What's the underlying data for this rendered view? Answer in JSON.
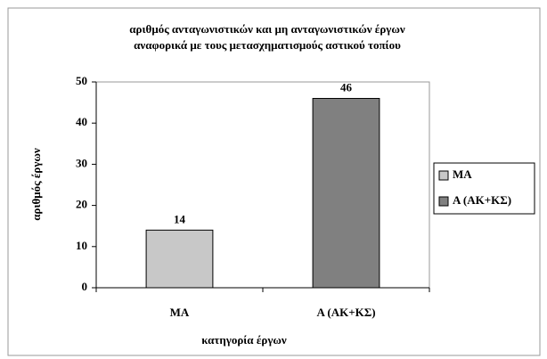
{
  "chart_data": {
    "type": "bar",
    "title": [
      "αριθμός ανταγωνιστικών και μη ανταγωνιστικών έργων",
      "αναφορικά με τους μετασχηματισμούς αστικού τοπίου"
    ],
    "x_label": "κατηγορία έργων",
    "y_label": "αριθμός έργων",
    "categories": [
      "ΜΑ",
      "Α (ΑΚ+ΚΣ)"
    ],
    "values": [
      14,
      46
    ],
    "colors": [
      "#c8c8c8",
      "#808080"
    ],
    "ylim": [
      0,
      50
    ],
    "yticks": [
      0,
      10,
      20,
      30,
      40,
      50
    ],
    "legend": "right"
  }
}
